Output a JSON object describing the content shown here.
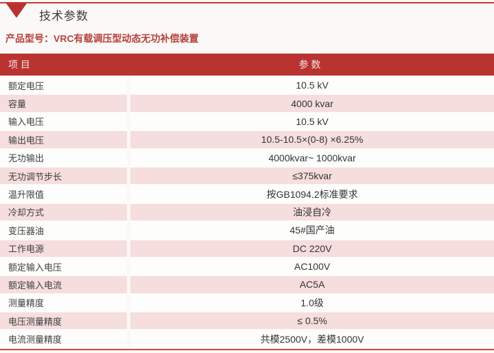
{
  "section": {
    "title": "技术参数",
    "icon": "red-down-triangle-icon"
  },
  "product_model": {
    "label": "产品型号：",
    "value": "VRC有载调压型动态无功补偿装置"
  },
  "table": {
    "headers": {
      "item": "项 目",
      "param": "参 数"
    },
    "rows": [
      {
        "item": "额定电压",
        "param": "10.5 kV"
      },
      {
        "item": "容量",
        "param": "4000 kvar"
      },
      {
        "item": "输入电压",
        "param": "10.5 kV"
      },
      {
        "item": "输出电压",
        "param": "10.5-10.5×(0-8) ×6.25%"
      },
      {
        "item": "无功输出",
        "param": "4000kvar~ 1000kvar"
      },
      {
        "item": "无功调节步长",
        "param": "≤375kvar"
      },
      {
        "item": "温升限值",
        "param": "按GB1094.2标准要求"
      },
      {
        "item": "冷却方式",
        "param": "油浸自冷"
      },
      {
        "item": "变压器油",
        "param": "45#国产油"
      },
      {
        "item": "工作电源",
        "param": "DC 220V"
      },
      {
        "item": "额定输入电压",
        "param": "AC100V"
      },
      {
        "item": "额定输入电流",
        "param": "AC5A"
      },
      {
        "item": "测量精度",
        "param": "1.0级"
      },
      {
        "item": "电压测量精度",
        "param": "≤ 0.5%"
      },
      {
        "item": "电流测量精度",
        "param": "共模2500V，差模1000V"
      }
    ]
  },
  "colors": {
    "header_red": "#B93330",
    "pink_row": "#F6DDDE",
    "top_line_red": "#C13B33",
    "bottom_line_red": "#CC4B3C",
    "product_text_red": "#B5413C",
    "title_text": "#3C3C3C",
    "page_background": "#FBF9F7"
  }
}
